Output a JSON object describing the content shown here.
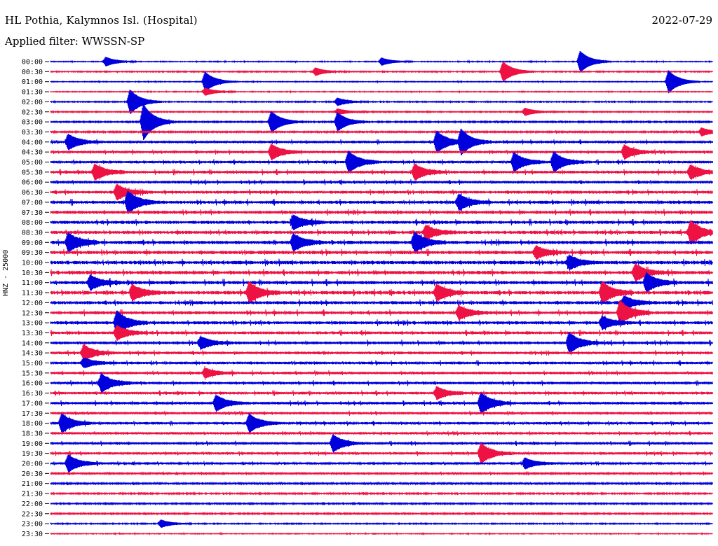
{
  "header": {
    "station": "HL Pothia, Kalymnos Isl. (Hospital)",
    "date": "2022-07-29",
    "filter": "Applied filter: WWSSN-SP",
    "channel": "HNZ - 25000"
  },
  "chart_data": {
    "type": "line",
    "title": "HL Pothia, Kalymnos Isl. (Hospital)",
    "subtitle": "Applied filter: WWSSN-SP",
    "ylabel": "HNZ - 25000",
    "colors": [
      "#0000dd",
      "#ee1144"
    ],
    "rows": [
      "00:00",
      "00:30",
      "01:00",
      "01:30",
      "02:00",
      "02:30",
      "03:00",
      "03:30",
      "04:00",
      "04:30",
      "05:00",
      "05:30",
      "06:00",
      "06:30",
      "07:00",
      "07:30",
      "08:00",
      "08:30",
      "09:00",
      "09:30",
      "10:00",
      "10:30",
      "11:00",
      "11:30",
      "12:00",
      "12:30",
      "13:00",
      "13:30",
      "14:00",
      "14:30",
      "15:00",
      "15:30",
      "16:00",
      "16:30",
      "17:00",
      "17:30",
      "18:00",
      "18:30",
      "19:00",
      "19:30",
      "20:00",
      "20:30",
      "21:00",
      "21:30",
      "22:00",
      "22:30",
      "23:00",
      "23:30"
    ],
    "noise_level": [
      0.15,
      0.2,
      0.15,
      0.15,
      0.2,
      0.2,
      0.25,
      0.3,
      0.45,
      0.45,
      0.5,
      0.55,
      0.5,
      0.55,
      0.6,
      0.6,
      0.6,
      0.6,
      0.65,
      0.65,
      0.65,
      0.65,
      0.65,
      0.65,
      0.6,
      0.6,
      0.6,
      0.55,
      0.55,
      0.5,
      0.5,
      0.5,
      0.5,
      0.5,
      0.5,
      0.45,
      0.45,
      0.45,
      0.45,
      0.45,
      0.4,
      0.35,
      0.3,
      0.25,
      0.25,
      0.25,
      0.2,
      0.15
    ],
    "events": [
      {
        "row": "00:00",
        "minute": 2.5,
        "amp": 0.6
      },
      {
        "row": "00:00",
        "minute": 15,
        "amp": 0.5
      },
      {
        "row": "00:00",
        "minute": 24,
        "amp": 1.4
      },
      {
        "row": "00:30",
        "minute": 12,
        "amp": 0.5
      },
      {
        "row": "00:30",
        "minute": 20.5,
        "amp": 1.3
      },
      {
        "row": "01:00",
        "minute": 7,
        "amp": 1.3
      },
      {
        "row": "01:00",
        "minute": 28,
        "amp": 1.5
      },
      {
        "row": "01:30",
        "minute": 7,
        "amp": 0.5
      },
      {
        "row": "02:00",
        "minute": 3.6,
        "amp": 1.6
      },
      {
        "row": "02:00",
        "minute": 13,
        "amp": 0.5
      },
      {
        "row": "02:30",
        "minute": 13,
        "amp": 0.4
      },
      {
        "row": "02:30",
        "minute": 21.5,
        "amp": 0.5
      },
      {
        "row": "03:00",
        "minute": 4.2,
        "amp": 2.4
      },
      {
        "row": "03:00",
        "minute": 10,
        "amp": 1.4
      },
      {
        "row": "03:00",
        "minute": 13,
        "amp": 1.2
      },
      {
        "row": "03:30",
        "minute": 29.5,
        "amp": 0.5
      },
      {
        "row": "04:00",
        "minute": 0.8,
        "amp": 1.0
      },
      {
        "row": "04:00",
        "minute": 17.5,
        "amp": 1.4
      },
      {
        "row": "04:00",
        "minute": 18.6,
        "amp": 1.6
      },
      {
        "row": "04:30",
        "minute": 10,
        "amp": 1.0
      },
      {
        "row": "04:30",
        "minute": 26,
        "amp": 0.9
      },
      {
        "row": "05:00",
        "minute": 13.5,
        "amp": 1.4
      },
      {
        "row": "05:00",
        "minute": 21,
        "amp": 1.2
      },
      {
        "row": "05:00",
        "minute": 22.8,
        "amp": 1.3
      },
      {
        "row": "05:30",
        "minute": 2,
        "amp": 1.0
      },
      {
        "row": "05:30",
        "minute": 16.5,
        "amp": 1.0
      },
      {
        "row": "05:30",
        "minute": 29,
        "amp": 0.9
      },
      {
        "row": "06:30",
        "minute": 3,
        "amp": 1.0
      },
      {
        "row": "07:00",
        "minute": 3.5,
        "amp": 1.4
      },
      {
        "row": "07:00",
        "minute": 18.5,
        "amp": 1.0
      },
      {
        "row": "08:00",
        "minute": 11,
        "amp": 0.9
      },
      {
        "row": "08:30",
        "minute": 17,
        "amp": 0.9
      },
      {
        "row": "08:30",
        "minute": 29,
        "amp": 1.5
      },
      {
        "row": "09:00",
        "minute": 0.8,
        "amp": 1.2
      },
      {
        "row": "09:00",
        "minute": 11,
        "amp": 1.1
      },
      {
        "row": "09:00",
        "minute": 16.5,
        "amp": 1.3
      },
      {
        "row": "09:30",
        "minute": 22,
        "amp": 0.8
      },
      {
        "row": "10:00",
        "minute": 23.5,
        "amp": 0.9
      },
      {
        "row": "10:30",
        "minute": 26.5,
        "amp": 1.1
      },
      {
        "row": "11:00",
        "minute": 1.8,
        "amp": 0.9
      },
      {
        "row": "11:00",
        "minute": 27,
        "amp": 1.2
      },
      {
        "row": "11:30",
        "minute": 3.7,
        "amp": 1.0
      },
      {
        "row": "11:30",
        "minute": 9,
        "amp": 1.3
      },
      {
        "row": "11:30",
        "minute": 17.5,
        "amp": 1.0
      },
      {
        "row": "11:30",
        "minute": 25,
        "amp": 1.4
      },
      {
        "row": "12:00",
        "minute": 26,
        "amp": 0.8
      },
      {
        "row": "12:30",
        "minute": 18.5,
        "amp": 0.9
      },
      {
        "row": "12:30",
        "minute": 25.8,
        "amp": 1.5
      },
      {
        "row": "13:00",
        "minute": 3,
        "amp": 1.5
      },
      {
        "row": "13:00",
        "minute": 25,
        "amp": 0.8
      },
      {
        "row": "13:30",
        "minute": 3,
        "amp": 0.9
      },
      {
        "row": "14:00",
        "minute": 6.8,
        "amp": 0.8
      },
      {
        "row": "14:00",
        "minute": 23.5,
        "amp": 1.3
      },
      {
        "row": "14:30",
        "minute": 1.5,
        "amp": 1.0
      },
      {
        "row": "15:00",
        "minute": 1.5,
        "amp": 0.6
      },
      {
        "row": "15:30",
        "minute": 7,
        "amp": 0.6
      },
      {
        "row": "16:00",
        "minute": 2.3,
        "amp": 1.2
      },
      {
        "row": "16:30",
        "minute": 17.5,
        "amp": 0.8
      },
      {
        "row": "17:00",
        "minute": 7.5,
        "amp": 1.0
      },
      {
        "row": "17:00",
        "minute": 19.5,
        "amp": 1.3
      },
      {
        "row": "18:00",
        "minute": 0.5,
        "amp": 1.2
      },
      {
        "row": "18:00",
        "minute": 9,
        "amp": 1.2
      },
      {
        "row": "19:00",
        "minute": 12.8,
        "amp": 1.1
      },
      {
        "row": "19:30",
        "minute": 19.5,
        "amp": 1.3
      },
      {
        "row": "20:00",
        "minute": 0.8,
        "amp": 1.1
      },
      {
        "row": "20:00",
        "minute": 21.5,
        "amp": 0.7
      },
      {
        "row": "23:00",
        "minute": 5,
        "amp": 0.5
      }
    ]
  }
}
